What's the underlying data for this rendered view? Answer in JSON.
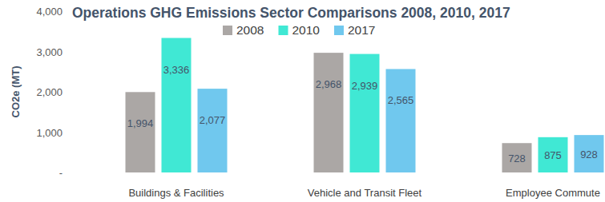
{
  "chart_data": {
    "type": "bar",
    "title": "Operations GHG Emissions Sector Comparisons 2008, 2010, 2017",
    "y_label": "CO2e (MT)",
    "categories": [
      "Buildings & Facilities",
      "Vehicle and Transit Fleet",
      "Employee Commute"
    ],
    "series": [
      {
        "name": "2008",
        "color": "#aba7a5",
        "values": [
          1994,
          2968,
          728
        ],
        "value_labels": [
          "1,994",
          "2,968",
          "728"
        ]
      },
      {
        "name": "2010",
        "color": "#40e8d4",
        "values": [
          3336,
          2939,
          875
        ],
        "value_labels": [
          "3,336",
          "2,939",
          "875"
        ]
      },
      {
        "name": "2017",
        "color": "#70c8ee",
        "values": [
          2077,
          2565,
          928
        ],
        "value_labels": [
          "2,077",
          "2,565",
          "928"
        ]
      }
    ],
    "ylim": [
      0,
      4000
    ],
    "yticks": [
      {
        "value": 0,
        "label": "-"
      },
      {
        "value": 1000,
        "label": "1,000"
      },
      {
        "value": 2000,
        "label": "2,000"
      },
      {
        "value": 3000,
        "label": "3,000"
      },
      {
        "value": 4000,
        "label": "4,000"
      }
    ],
    "grid": false,
    "legend": "top",
    "data_labels": true
  }
}
